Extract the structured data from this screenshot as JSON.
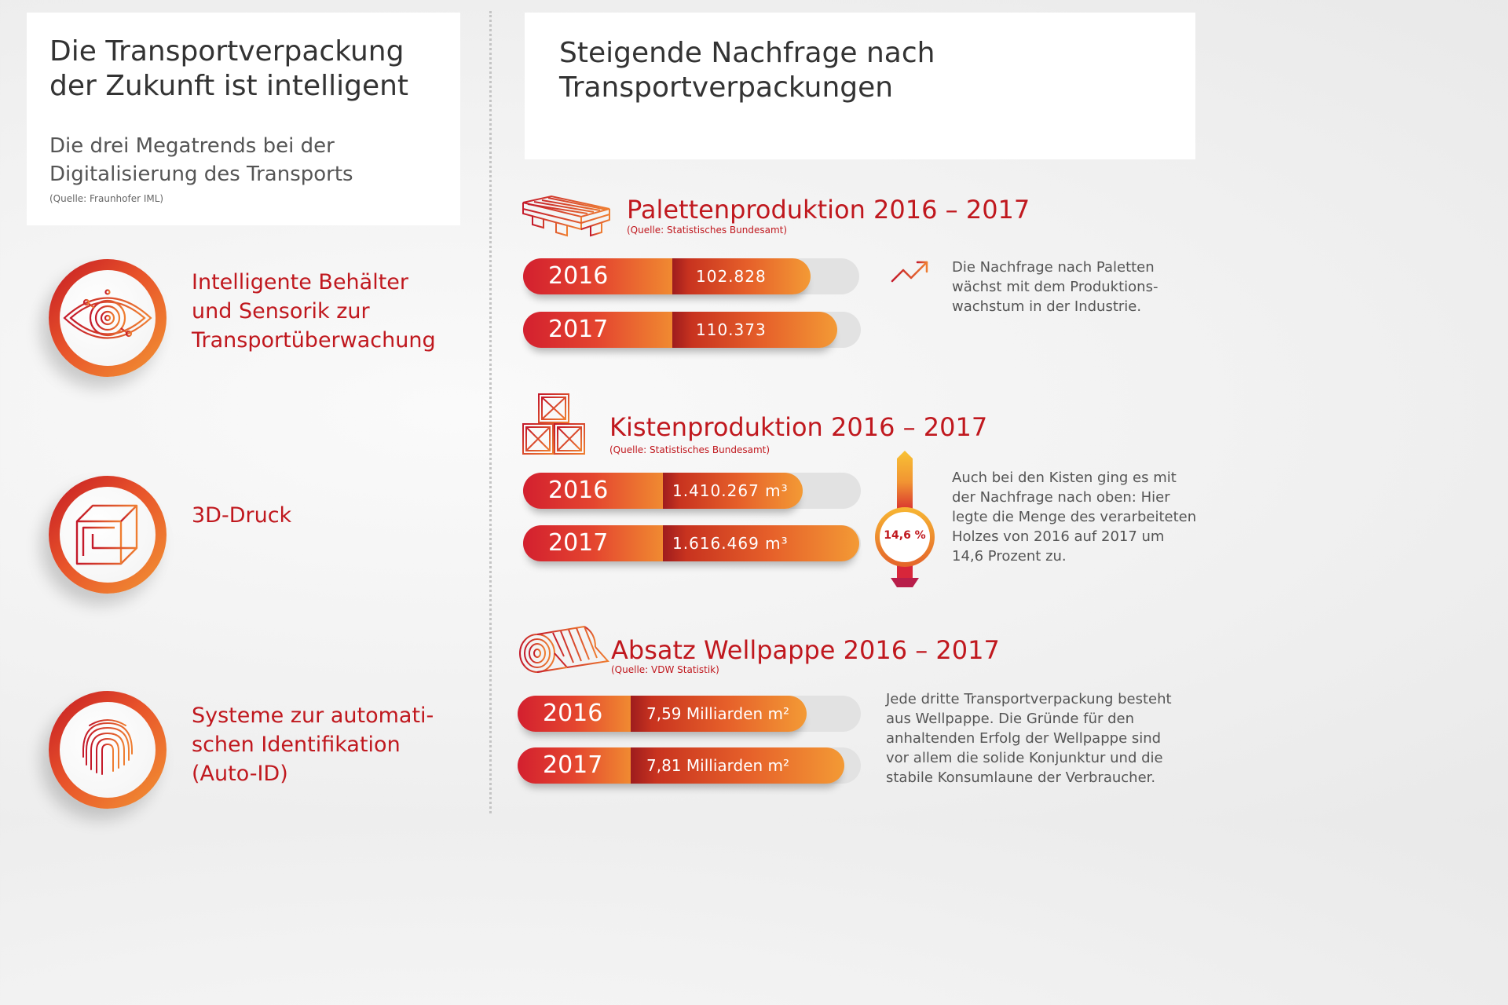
{
  "left": {
    "title_line1": "Die Transportverpackung",
    "title_line2": "der Zukunft ist intelligent",
    "subtitle_line1": "Die drei Megatrends bei der",
    "subtitle_line2": "Digitalisierung des Transports",
    "source": "(Quelle: Fraunhofer IML)",
    "trends": [
      {
        "icon": "eye-sensor-icon",
        "lines": [
          "Intelligente Behälter",
          "und Sensorik zur",
          "Transportüberwachung"
        ]
      },
      {
        "icon": "cube-3d-print-icon",
        "lines": [
          "3D-Druck"
        ]
      },
      {
        "icon": "fingerprint-icon",
        "lines": [
          "Systeme zur automati-",
          "schen Identifikation",
          "(Auto-ID)"
        ]
      }
    ]
  },
  "right": {
    "title_line1": "Steigende Nachfrage nach",
    "title_line2": "Transportverpackungen",
    "sections": [
      {
        "icon": "pallet-icon",
        "title": "Palettenproduktion 2016 – 2017",
        "source": "(Quelle: Statistisches Bundesamt)",
        "bars": [
          {
            "year": "2016",
            "value": "102.828",
            "number": 102828
          },
          {
            "year": "2017",
            "value": "110.373",
            "number": 110373
          }
        ],
        "note_icon": "trend-up-icon",
        "note_lines": [
          "Die Nachfrage nach Paletten",
          "wächst mit dem Produktions-",
          "wachstum in der Industrie."
        ]
      },
      {
        "icon": "crates-icon",
        "title": "Kistenproduktion 2016 – 2017",
        "source": "(Quelle: Statistisches Bundesamt)",
        "bars": [
          {
            "year": "2016",
            "value": "1.410.267 m³",
            "number": 1410267
          },
          {
            "year": "2017",
            "value": "1.616.469 m³",
            "number": 1616469
          }
        ],
        "percent": "14,6 %",
        "note_lines": [
          "Auch bei den Kisten ging es mit",
          "der Nachfrage nach oben: Hier",
          "legte die Menge des verarbeiteten",
          "Holzes von 2016 auf 2017 um",
          "14,6 Prozent zu."
        ]
      },
      {
        "icon": "cardboard-roll-icon",
        "title": "Absatz Wellpappe 2016 – 2017",
        "source": "(Quelle: VDW Statistik)",
        "bars": [
          {
            "year": "2016",
            "value": "7,59 Milliarden m²",
            "number": 7.59
          },
          {
            "year": "2017",
            "value": "7,81 Milliarden m²",
            "number": 7.81
          }
        ],
        "note_lines": [
          "Jede dritte Transportverpackung besteht",
          "aus Wellpappe. Die Gründe für den",
          "anhaltenden Erfolg der Wellpappe sind",
          "vor allem die solide Konjunktur und die",
          "stabile Konsumlaune der Verbraucher."
        ]
      }
    ]
  }
}
